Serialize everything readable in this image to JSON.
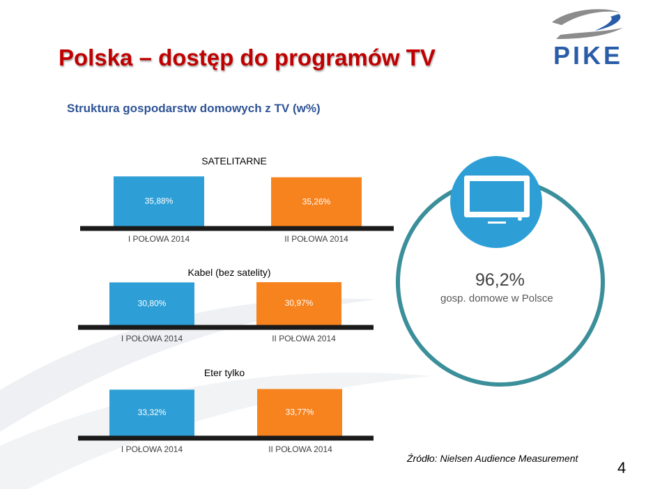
{
  "slide": {
    "title": "Polska – dostęp do programów TV",
    "subtitle": "Struktura gospodarstw domowych z TV (w%)",
    "logo_text": "PIKE",
    "share_value": "96,2%",
    "share_label": "gosp. domowe w Polsce",
    "source": "Źródło: Nielsen Audience Measurement",
    "page_number": "4",
    "icon": "tv-monitor-icon"
  },
  "colors": {
    "title": "#c00000",
    "subtitle": "#2f5496",
    "bar_first": "#2e9fd6",
    "bar_second": "#f7831f",
    "baseline": "#1a1a1a",
    "circle": "#3b8f9a",
    "logo_blue": "#2a5da8",
    "logo_grey": "#8c8c8c"
  },
  "chart_data": [
    {
      "type": "bar",
      "title": "SATELITARNE",
      "categories": [
        "I POŁOWA 2014",
        "II POŁOWA 2014"
      ],
      "values": [
        35.88,
        35.26
      ],
      "value_labels": [
        "35,88%",
        "35,26%"
      ]
    },
    {
      "type": "bar",
      "title": "Kabel  (bez satelity)",
      "categories": [
        "I POŁOWA 2014",
        "II POŁOWA 2014"
      ],
      "values": [
        30.8,
        30.97
      ],
      "value_labels": [
        "30,80%",
        "30,97%"
      ]
    },
    {
      "type": "bar",
      "title": "Eter tylko",
      "categories": [
        "I POŁOWA 2014",
        "II POŁOWA 2014"
      ],
      "values": [
        33.32,
        33.77
      ],
      "value_labels": [
        "33,32%",
        "33,77%"
      ]
    }
  ]
}
